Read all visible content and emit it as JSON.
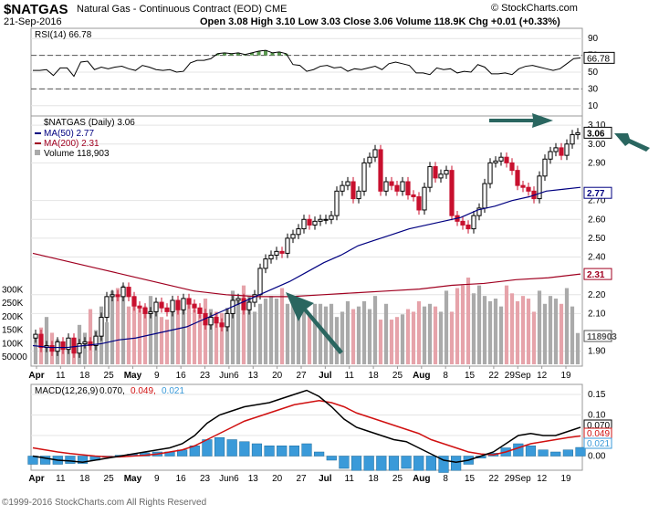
{
  "header": {
    "symbol": "$NATGAS",
    "description": "Natural Gas - Continuous Contract (EOD)",
    "exchange": "CME",
    "date": "21-Sep-2016",
    "ohlc": "Open 3.08  High 3.10  Low 3.03  Close 3.06  Volume 118.9K  Chg +0.01 (+0.33%)",
    "brand": "© StockCharts.com"
  },
  "footer": {
    "copyright": "©1999-2016 StockCharts.com All Rights Reserved"
  },
  "colors": {
    "up": "#000000",
    "down": "#c8102e",
    "ma50": "#000080",
    "ma200": "#a00020",
    "arrow": "#2a6660",
    "volUp": "#aaaaaa",
    "volDown": "#e6a3aa",
    "macdHist": "#3a9ad9",
    "rsiFill": "#5a9a50"
  },
  "chart_data": [
    {
      "type": "line",
      "title": "RSI(14) 66.78",
      "ylim": [
        0,
        100
      ],
      "yticks": [
        10,
        30,
        50,
        70,
        90
      ],
      "overbought": 70,
      "oversold": 30,
      "last_label": "66.78",
      "series": [
        {
          "name": "RSI(14)",
          "values": [
            52,
            52,
            53,
            46,
            55,
            55,
            45,
            62,
            63,
            53,
            56,
            54,
            56,
            57,
            54,
            52,
            58,
            56,
            53,
            52,
            53,
            50,
            51,
            61,
            64,
            64,
            66,
            72,
            73,
            72,
            73,
            71,
            73,
            75,
            76,
            73,
            74,
            72,
            59,
            58,
            51,
            53,
            57,
            58,
            55,
            56,
            51,
            54,
            53,
            55,
            57,
            53,
            60,
            62,
            60,
            58,
            49,
            49,
            47,
            55,
            53,
            54,
            49,
            51,
            50,
            59,
            56,
            48,
            48,
            49,
            47,
            54,
            57,
            58,
            56,
            54,
            52,
            54,
            60,
            66,
            67
          ]
        }
      ]
    },
    {
      "type": "bar",
      "title": "$NATGAS (Daily) 3.06",
      "ylim": [
        1.85,
        3.12
      ],
      "yticks": [
        1.9,
        2.1,
        2.2,
        2.4,
        2.5,
        2.6,
        2.7,
        2.9,
        3.0,
        3.1
      ],
      "price_labels": {
        "last": "3.06",
        "ma50": "2.77",
        "ma200": "2.31",
        "vol": "118903"
      },
      "volume_ticks": [
        "50000",
        "100K",
        "150K",
        "200K",
        "250K",
        "300K"
      ],
      "x_labels": [
        "Apr",
        "11",
        "18",
        "25",
        "May",
        "9",
        "16",
        "23",
        "Jun6",
        "13",
        "20",
        "27",
        "Jul",
        "11",
        "18",
        "25",
        "Aug",
        "8",
        "15",
        "22",
        "29Sep",
        "12",
        "19"
      ],
      "series": [
        {
          "name": "$NATGAS (Daily) 3.06",
          "close": [
            1.99,
            1.92,
            1.93,
            1.9,
            1.95,
            1.91,
            1.97,
            1.89,
            1.94,
            1.95,
            1.93,
            1.98,
            2.08,
            2.19,
            2.2,
            2.19,
            2.24,
            2.19,
            2.14,
            2.13,
            2.1,
            2.11,
            2.16,
            2.13,
            2.11,
            2.17,
            2.12,
            2.18,
            2.15,
            2.13,
            2.1,
            2.04,
            2.08,
            2.05,
            2.03,
            2.1,
            2.17,
            2.18,
            2.12,
            2.16,
            2.2,
            2.34,
            2.39,
            2.41,
            2.43,
            2.42,
            2.5,
            2.52,
            2.55,
            2.6,
            2.57,
            2.59,
            2.6,
            2.6,
            2.62,
            2.75,
            2.78,
            2.8,
            2.71,
            2.75,
            2.9,
            2.93,
            2.97,
            2.75,
            2.8,
            2.78,
            2.75,
            2.8,
            2.73,
            2.72,
            2.65,
            2.77,
            2.88,
            2.82,
            2.84,
            2.86,
            2.62,
            2.59,
            2.57,
            2.55,
            2.62,
            2.66,
            2.79,
            2.9,
            2.91,
            2.93,
            2.9,
            2.86,
            2.78,
            2.77,
            2.75,
            2.71,
            2.83,
            2.92,
            2.96,
            2.98,
            2.94,
            3.0,
            3.05,
            3.06
          ]
        },
        {
          "name": "Volume 118,903",
          "values": [
            110,
            140,
            180,
            120,
            95,
            85,
            100,
            80,
            150,
            120,
            210,
            130,
            220,
            160,
            280,
            290,
            300,
            220,
            260,
            215,
            220,
            260,
            200,
            180,
            170,
            200,
            240,
            220,
            230,
            210,
            190,
            250,
            210,
            200,
            195,
            215,
            280,
            240,
            300,
            260,
            200,
            230,
            250,
            260,
            250,
            290,
            230,
            260,
            210,
            240,
            190,
            230,
            230,
            220,
            230,
            180,
            200,
            240,
            210,
            220,
            240,
            210,
            260,
            170,
            230,
            170,
            180,
            190,
            210,
            200,
            240,
            220,
            230,
            220,
            200,
            280,
            200,
            290,
            300,
            330,
            270,
            300,
            260,
            240,
            250,
            220,
            300,
            270,
            240,
            260,
            250,
            200,
            280,
            230,
            260,
            250,
            230,
            290,
            220,
            119
          ]
        },
        {
          "name": "MA(50) 2.77",
          "values": [
            1.93,
            1.92,
            1.92,
            1.93,
            1.94,
            1.96,
            1.97,
            1.99,
            2.01,
            2.03,
            2.07,
            2.11,
            2.15,
            2.19,
            2.23,
            2.27,
            2.32,
            2.37,
            2.41,
            2.46,
            2.49,
            2.52,
            2.55,
            2.57,
            2.59,
            2.61,
            2.65,
            2.67,
            2.7,
            2.72,
            2.75,
            2.76,
            2.77
          ]
        },
        {
          "name": "MA(200) 2.31",
          "values": [
            2.42,
            2.38,
            2.34,
            2.3,
            2.26,
            2.22,
            2.2,
            2.19,
            2.19,
            2.2,
            2.21,
            2.22,
            2.23,
            2.25,
            2.26,
            2.28,
            2.29,
            2.31
          ]
        }
      ]
    },
    {
      "type": "line",
      "title": "MACD(12,26,9) 0.070, 0.049, 0.021",
      "ylim": [
        -0.03,
        0.17
      ],
      "yticks": [
        0.0,
        0.05,
        0.1,
        0.15
      ],
      "last_labels": {
        "macd": "0.070",
        "signal": "0.049",
        "hist": "0.021"
      },
      "series": [
        {
          "name": "MACD(12,26,9)",
          "values": [
            0.0,
            -0.005,
            -0.01,
            -0.012,
            -0.015,
            -0.01,
            -0.005,
            0.0,
            0.005,
            0.01,
            0.015,
            0.02,
            0.03,
            0.05,
            0.08,
            0.1,
            0.11,
            0.12,
            0.125,
            0.13,
            0.14,
            0.15,
            0.16,
            0.145,
            0.12,
            0.09,
            0.07,
            0.06,
            0.05,
            0.04,
            0.035,
            0.02,
            0.005,
            -0.01,
            -0.015,
            -0.01,
            0.0,
            0.01,
            0.03,
            0.05,
            0.055,
            0.05,
            0.05,
            0.06,
            0.07
          ]
        },
        {
          "name": "",
          "values": [
            0.02,
            0.015,
            0.01,
            0.006,
            0.003,
            0.0,
            -0.002,
            -0.002,
            0.0,
            0.002,
            0.005,
            0.01,
            0.015,
            0.025,
            0.04,
            0.055,
            0.07,
            0.085,
            0.095,
            0.105,
            0.115,
            0.125,
            0.13,
            0.135,
            0.13,
            0.12,
            0.105,
            0.095,
            0.085,
            0.075,
            0.065,
            0.055,
            0.04,
            0.03,
            0.02,
            0.01,
            0.005,
            0.003,
            0.01,
            0.02,
            0.03,
            0.035,
            0.04,
            0.045,
            0.049
          ]
        },
        {
          "name": "",
          "values": [
            -0.02,
            -0.02,
            -0.02,
            -0.018,
            -0.018,
            -0.01,
            -0.003,
            0.002,
            0.005,
            0.008,
            0.01,
            0.01,
            0.015,
            0.025,
            0.04,
            0.045,
            0.04,
            0.035,
            0.03,
            0.025,
            0.025,
            0.025,
            0.03,
            0.01,
            -0.01,
            -0.03,
            -0.035,
            -0.035,
            -0.035,
            -0.035,
            -0.03,
            -0.035,
            -0.035,
            -0.04,
            -0.035,
            -0.02,
            -0.005,
            0.007,
            0.02,
            0.03,
            0.025,
            0.015,
            0.01,
            0.015,
            0.021
          ]
        }
      ]
    }
  ]
}
